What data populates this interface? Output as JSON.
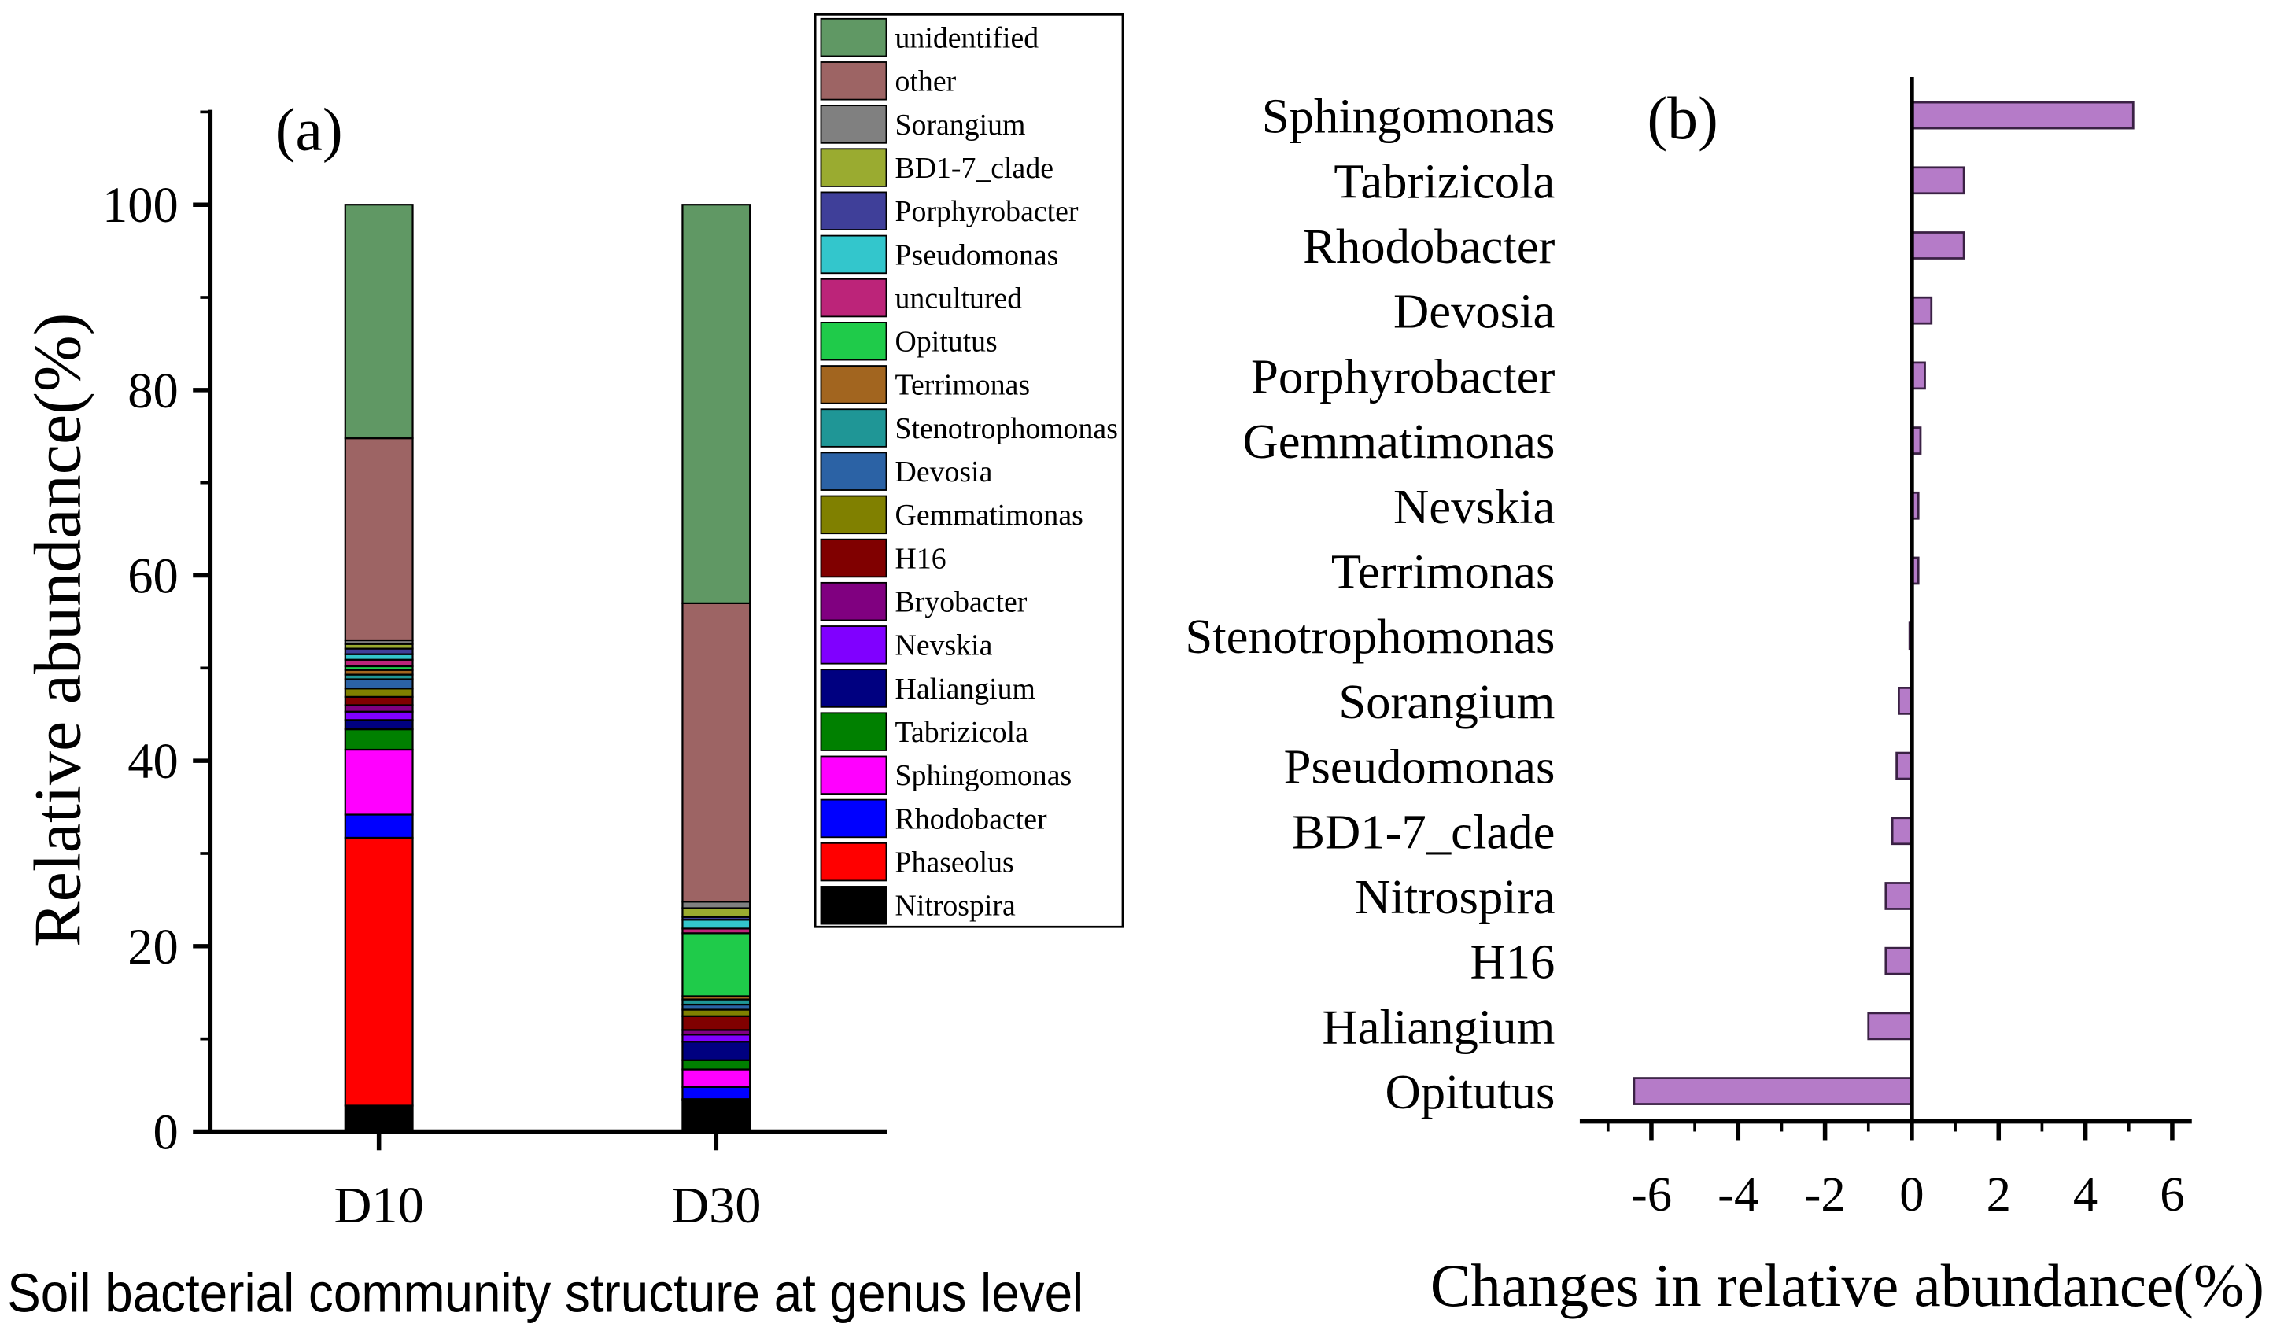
{
  "chart_data": [
    {
      "type": "bar",
      "stacked": true,
      "panel_label": "(a)",
      "title": "",
      "xlabel": "Soil bacterial community structure at genus level",
      "ylabel": "Relative abundance(%)",
      "categories": [
        "D10",
        "D30"
      ],
      "ylim": [
        0,
        110
      ],
      "yticks": [
        0,
        20,
        40,
        60,
        80,
        100
      ],
      "grid": false,
      "legend_position": "top-right",
      "series": [
        {
          "name": "Nitrospira",
          "color": "#000000",
          "values": [
            2.8,
            3.4
          ]
        },
        {
          "name": "Phaseolus",
          "color": "#ff0000",
          "values": [
            28.9,
            0.1
          ]
        },
        {
          "name": "Rhodobacter",
          "color": "#0000ff",
          "values": [
            2.5,
            1.3
          ]
        },
        {
          "name": "Sphingomonas",
          "color": "#ff00ff",
          "values": [
            7.0,
            1.9
          ]
        },
        {
          "name": "Tabrizicola",
          "color": "#008000",
          "values": [
            2.2,
            1.0
          ]
        },
        {
          "name": "Haliangium",
          "color": "#000080",
          "values": [
            1.0,
            2.0
          ]
        },
        {
          "name": "Nevskia",
          "color": "#8000ff",
          "values": [
            0.9,
            0.75
          ]
        },
        {
          "name": "Bryobacter",
          "color": "#800080",
          "values": [
            0.7,
            0.5
          ]
        },
        {
          "name": "H16",
          "color": "#800000",
          "values": [
            0.9,
            1.5
          ]
        },
        {
          "name": "Gemmatimonas",
          "color": "#808000",
          "values": [
            0.9,
            0.7
          ]
        },
        {
          "name": "Devosia",
          "color": "#2b62a5",
          "values": [
            1.0,
            0.55
          ]
        },
        {
          "name": "Stenotrophomonas",
          "color": "#1f9696",
          "values": [
            0.5,
            0.55
          ]
        },
        {
          "name": "Terrimonas",
          "color": "#a2651f",
          "values": [
            0.5,
            0.35
          ]
        },
        {
          "name": "Opitutus",
          "color": "#1fcb4a",
          "values": [
            0.4,
            6.8
          ]
        },
        {
          "name": "uncultured",
          "color": "#bc2479",
          "values": [
            0.7,
            0.5
          ]
        },
        {
          "name": "Pseudomonas",
          "color": "#33c6cc",
          "values": [
            0.6,
            0.95
          ]
        },
        {
          "name": "Porphyrobacter",
          "color": "#3f3f99",
          "values": [
            0.6,
            0.3
          ]
        },
        {
          "name": "BD1-7_clade",
          "color": "#9aab30",
          "values": [
            0.5,
            0.95
          ]
        },
        {
          "name": "Sorangium",
          "color": "#808080",
          "values": [
            0.4,
            0.7
          ]
        },
        {
          "name": "other",
          "color": "#9d6464",
          "values": [
            21.8,
            32.2
          ]
        },
        {
          "name": "unidentified",
          "color": "#609864",
          "values": [
            25.2,
            43.0
          ]
        }
      ]
    },
    {
      "type": "bar",
      "orientation": "horizontal",
      "panel_label": "(b)",
      "title": "",
      "xlabel": "Changes in relative abundance(%)",
      "ylabel": "",
      "categories": [
        "Sphingomonas",
        "Tabrizicola",
        "Rhodobacter",
        "Devosia",
        "Porphyrobacter",
        "Gemmatimonas",
        "Nevskia",
        "Terrimonas",
        "Stenotrophomonas",
        "Sorangium",
        "Pseudomonas",
        "BD1-7_clade",
        "Nitrospira",
        "H16",
        "Haliangium",
        "Opitutus"
      ],
      "values": [
        5.1,
        1.2,
        1.2,
        0.45,
        0.3,
        0.2,
        0.15,
        0.15,
        -0.05,
        -0.3,
        -0.35,
        -0.45,
        -0.6,
        -0.6,
        -1.0,
        -6.4
      ],
      "xlim": [
        -7.6,
        6.4
      ],
      "xticks": [
        -6,
        -4,
        -2,
        0,
        2,
        4,
        6
      ],
      "grid": false,
      "color": "#b57bc8",
      "edge_color": "#3a2144"
    }
  ]
}
